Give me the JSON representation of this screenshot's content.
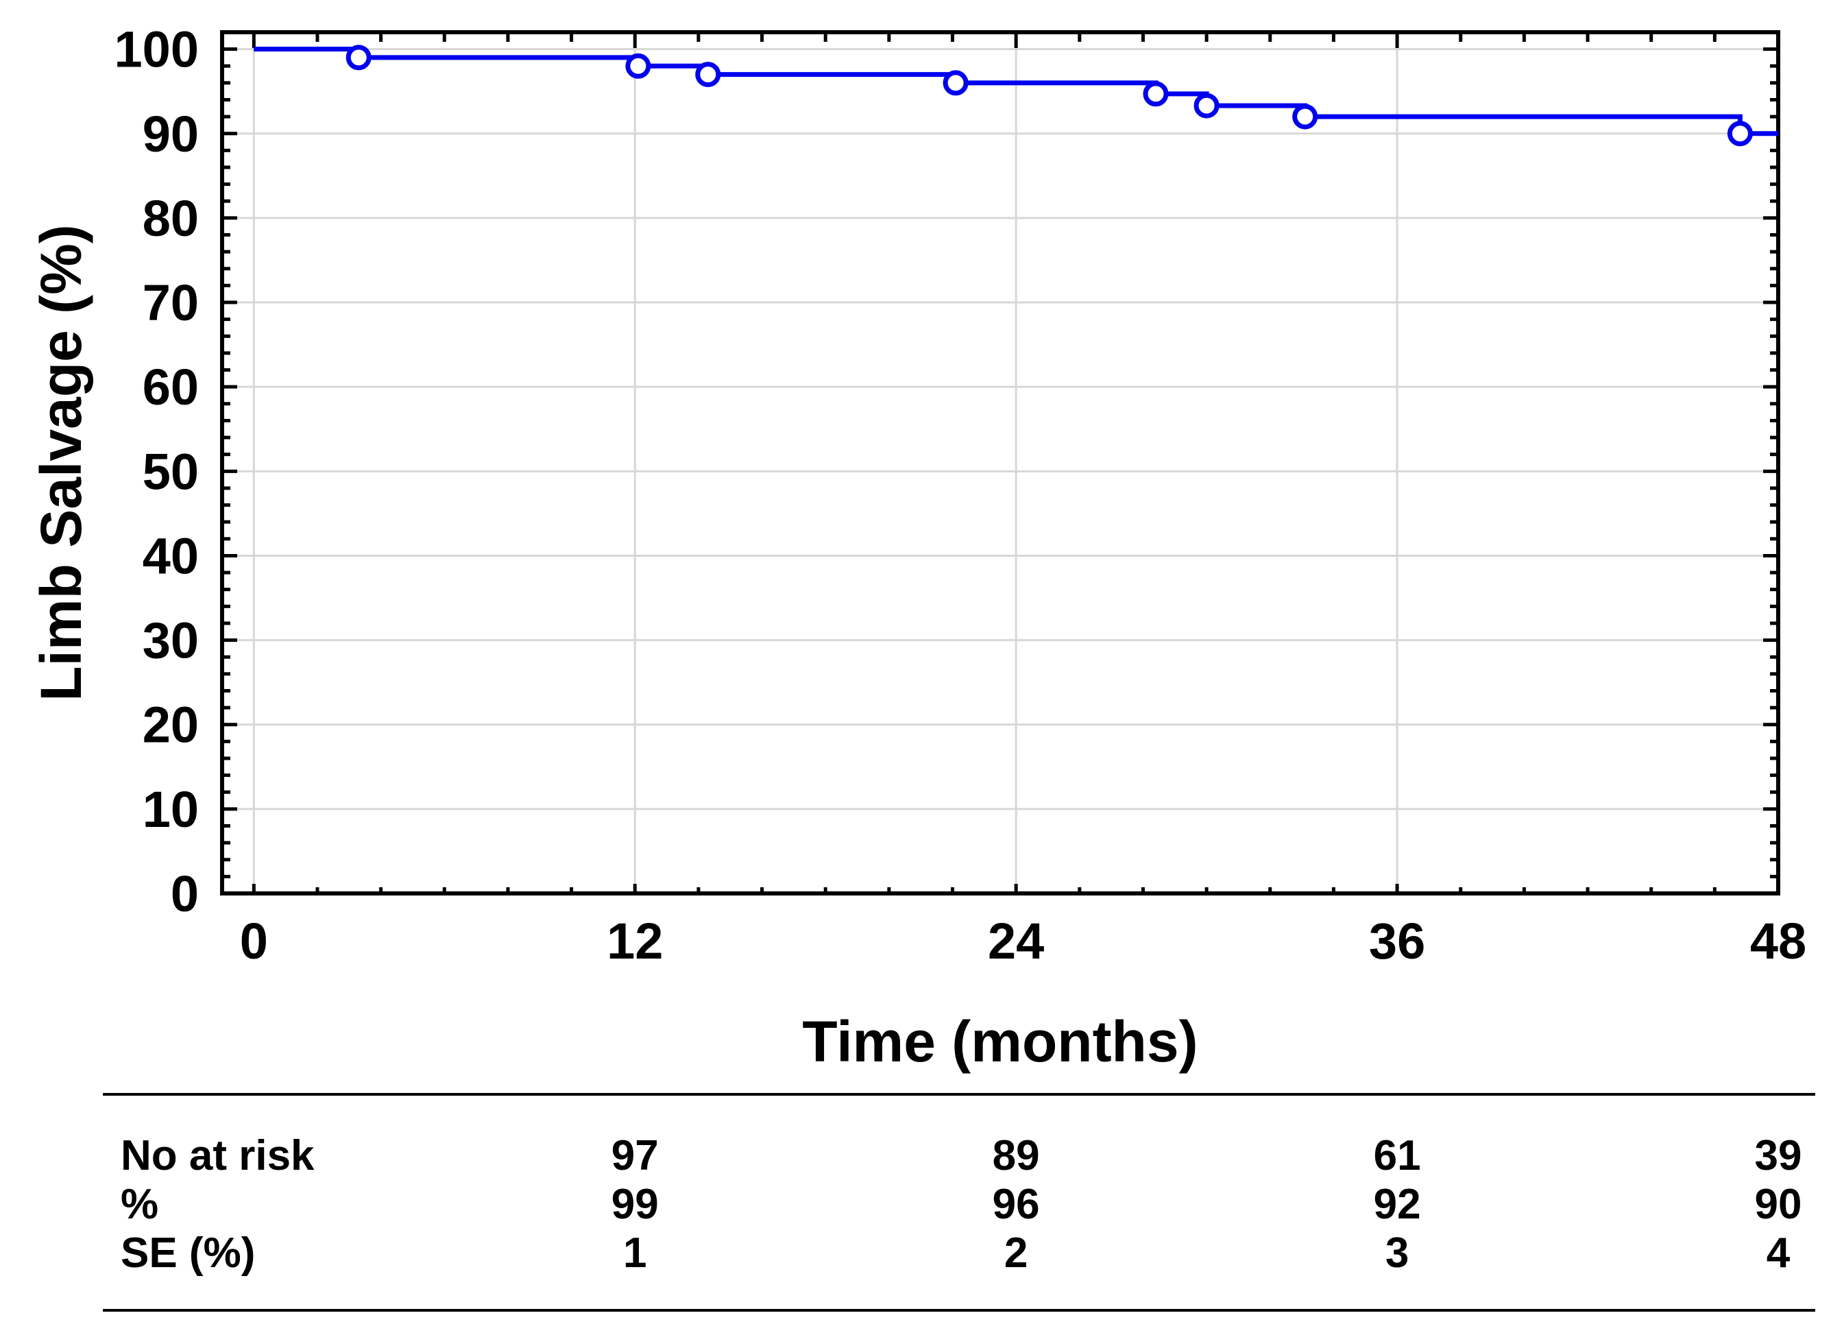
{
  "chart_data": {
    "type": "line",
    "subtype": "kaplan-meier-step-curve",
    "title": "",
    "xlabel": "Time (months)",
    "ylabel": "Limb Salvage (%)",
    "x_ticks": [
      0,
      12,
      24,
      36,
      48
    ],
    "x_minor_tick_step": 2,
    "y_ticks": [
      0,
      10,
      20,
      30,
      40,
      50,
      60,
      70,
      80,
      90,
      100
    ],
    "y_minor_tick_step": 2,
    "xlim": [
      -1,
      48
    ],
    "ylim": [
      0,
      102
    ],
    "grid": true,
    "legend": false,
    "series": [
      {
        "name": "Limb salvage",
        "steps": [
          [
            0,
            100
          ],
          [
            3.3,
            99
          ],
          [
            12.1,
            98
          ],
          [
            14.3,
            97
          ],
          [
            22.1,
            96
          ],
          [
            28.4,
            94.7
          ],
          [
            30.0,
            93.3
          ],
          [
            33.1,
            92
          ],
          [
            46.8,
            90
          ],
          [
            48,
            90
          ]
        ],
        "markers": [
          [
            3.3,
            99
          ],
          [
            12.1,
            98
          ],
          [
            14.3,
            97
          ],
          [
            22.1,
            96
          ],
          [
            28.4,
            94.7
          ],
          [
            30.0,
            93.3
          ],
          [
            33.1,
            92
          ],
          [
            46.8,
            90
          ]
        ]
      }
    ],
    "colors": {
      "curve": "#0000ee",
      "grid": "#d7d7d7",
      "axis": "#000000",
      "background": "#ffffff"
    }
  },
  "risk_table": {
    "columns_months": [
      12,
      24,
      36,
      48
    ],
    "rows": [
      {
        "label": "No at risk",
        "values": [
          "97",
          "89",
          "61",
          "39"
        ]
      },
      {
        "label": "%",
        "values": [
          "99",
          "96",
          "92",
          "90"
        ]
      },
      {
        "label": "SE (%)",
        "values": [
          "1",
          "2",
          "3",
          "4"
        ]
      }
    ]
  }
}
